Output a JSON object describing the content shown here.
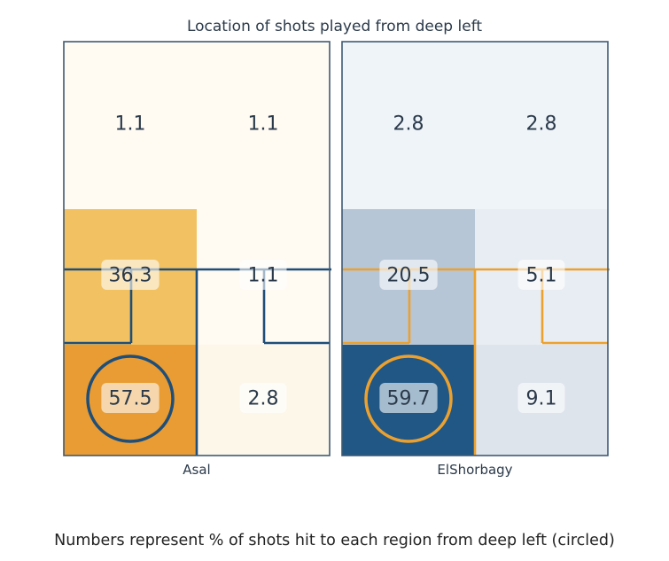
{
  "title": "Location of shots played from deep left",
  "caption": "Numbers represent % of shots hit to each region from deep left (circled)",
  "chart_data": {
    "type": "heatmap",
    "title": "Location of shots played from deep left",
    "grid": {
      "rows": 3,
      "cols": 2
    },
    "circled_cell": [
      2,
      0
    ],
    "panels": [
      {
        "name": "Asal",
        "line_color": "#1f4e79",
        "cells": [
          [
            {
              "value": "1.1",
              "color": "#fffaf2"
            },
            {
              "value": "1.1",
              "color": "#fffaf2"
            }
          ],
          [
            {
              "value": "36.3",
              "color": "#f2c262"
            },
            {
              "value": "1.1",
              "color": "#fffaf2"
            }
          ],
          [
            {
              "value": "57.5",
              "color": "#e89c33"
            },
            {
              "value": "2.8",
              "color": "#fdf7ea"
            }
          ]
        ]
      },
      {
        "name": "ElShorbagy",
        "line_color": "#eca12e",
        "cells": [
          [
            {
              "value": "2.8",
              "color": "#eff4f9"
            },
            {
              "value": "2.8",
              "color": "#eff4f9"
            }
          ],
          [
            {
              "value": "20.5",
              "color": "#b6c6d6"
            },
            {
              "value": "5.1",
              "color": "#e8edf3"
            }
          ],
          [
            {
              "value": "59.7",
              "color": "#205785"
            },
            {
              "value": "9.1",
              "color": "#dde4ec"
            }
          ]
        ]
      }
    ]
  }
}
